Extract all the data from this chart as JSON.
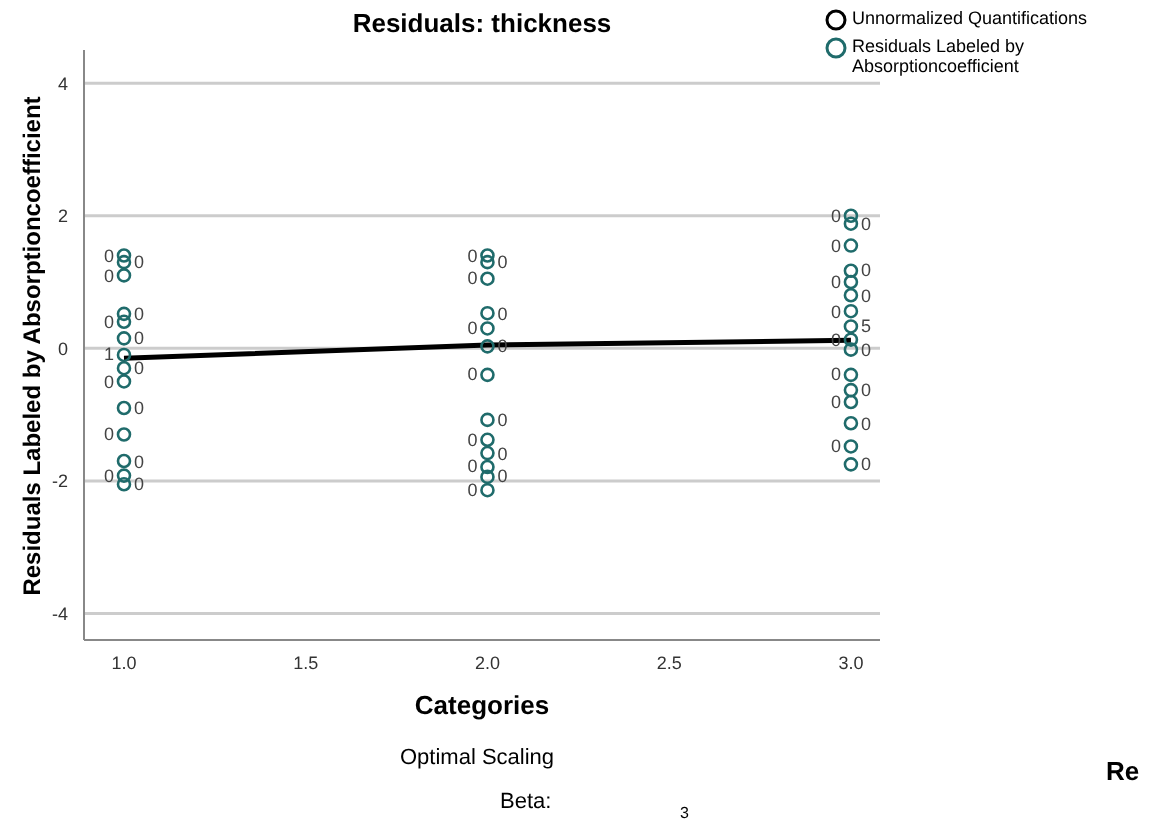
{
  "chart_data": {
    "type": "scatter",
    "title": "Residuals: thickness",
    "xlabel": "Categories",
    "ylabel": "Residuals Labeled by Absorptioncoefficient",
    "xlim": [
      0.89,
      3.08
    ],
    "xticks": [
      {
        "value": 1,
        "label": "1.0"
      },
      {
        "value": 1.5,
        "label": "1.5"
      },
      {
        "value": 2,
        "label": "2.0"
      },
      {
        "value": 2.5,
        "label": "2.5"
      },
      {
        "value": 3,
        "label": "3.0"
      }
    ],
    "ylim": [
      -4.4,
      4.5
    ],
    "yticks": [
      -4,
      -2,
      0,
      2,
      4
    ],
    "grid": "y",
    "legend": "top right",
    "series": [
      {
        "name": "Unnormalized Quantifications",
        "type": "line",
        "color": "#000000",
        "marker": "none",
        "x": [
          1,
          2,
          3
        ],
        "values": [
          -0.15,
          0.05,
          0.12
        ]
      },
      {
        "name": "Residuals Labeled by Absorptioncoefficient",
        "color": "#1f6b6b",
        "marker": "circle",
        "x": [
          1,
          1,
          1,
          1,
          1,
          1,
          1,
          1,
          1,
          1,
          1,
          1,
          1,
          1,
          2,
          2,
          2,
          2,
          2,
          2,
          2,
          2,
          2,
          2,
          2,
          2,
          2,
          3,
          3,
          3,
          3,
          3,
          3,
          3,
          3,
          3,
          3,
          3,
          3,
          3,
          3,
          3,
          3
        ],
        "values": [
          1.4,
          1.3,
          1.1,
          0.52,
          0.4,
          0.15,
          -0.1,
          -0.3,
          -0.5,
          -0.9,
          -1.3,
          -1.7,
          -1.92,
          -2.05,
          1.4,
          1.3,
          1.05,
          0.53,
          0.3,
          0.03,
          -0.4,
          -1.08,
          -1.38,
          -1.58,
          -1.79,
          -1.94,
          -2.14,
          2.0,
          1.88,
          1.55,
          1.17,
          1.0,
          0.8,
          0.56,
          0.33,
          0.13,
          -0.02,
          -0.4,
          -0.63,
          -0.81,
          -1.13,
          -1.48,
          -1.75
        ]
      }
    ],
    "annotations": [
      {
        "text": "0",
        "x": 1,
        "y": 1.4
      },
      {
        "text": "0",
        "x": 1,
        "y": 1.3
      },
      {
        "text": "0",
        "x": 1,
        "y": 1.1
      },
      {
        "text": "0",
        "x": 1,
        "y": 0.52
      },
      {
        "text": "0",
        "x": 1,
        "y": 0.4
      },
      {
        "text": "0",
        "x": 1,
        "y": 0.15
      },
      {
        "text": "1",
        "x": 1,
        "y": -0.1
      },
      {
        "text": "0",
        "x": 1,
        "y": -0.3
      },
      {
        "text": "0",
        "x": 1,
        "y": -0.5
      },
      {
        "text": "0",
        "x": 1,
        "y": -0.9
      },
      {
        "text": "0",
        "x": 1,
        "y": -1.3
      },
      {
        "text": "0",
        "x": 1,
        "y": -1.7
      },
      {
        "text": "0",
        "x": 1,
        "y": -1.92
      },
      {
        "text": "0",
        "x": 1,
        "y": -2.05
      },
      {
        "text": "0",
        "x": 2,
        "y": 1.4
      },
      {
        "text": "0",
        "x": 2,
        "y": 1.3
      },
      {
        "text": "0",
        "x": 2,
        "y": 1.05
      },
      {
        "text": "0",
        "x": 2,
        "y": 0.53
      },
      {
        "text": "0",
        "x": 2,
        "y": 0.3
      },
      {
        "text": "0",
        "x": 2,
        "y": 0.03
      },
      {
        "text": "0",
        "x": 2,
        "y": -0.4
      },
      {
        "text": "0",
        "x": 2,
        "y": -1.08
      },
      {
        "text": "0",
        "x": 2,
        "y": -1.38
      },
      {
        "text": "0",
        "x": 2,
        "y": -1.58
      },
      {
        "text": "0",
        "x": 2,
        "y": -1.79
      },
      {
        "text": "0",
        "x": 2,
        "y": -1.94
      },
      {
        "text": "0",
        "x": 2,
        "y": -2.14
      },
      {
        "text": "0",
        "x": 3,
        "y": 2.0
      },
      {
        "text": "0",
        "x": 3,
        "y": 1.88
      },
      {
        "text": "0",
        "x": 3,
        "y": 1.55
      },
      {
        "text": "0",
        "x": 3,
        "y": 1.17
      },
      {
        "text": "0",
        "x": 3,
        "y": 1.0
      },
      {
        "text": "0",
        "x": 3,
        "y": 0.8
      },
      {
        "text": "0",
        "x": 3,
        "y": 0.56
      },
      {
        "text": "5",
        "x": 3,
        "y": 0.33
      },
      {
        "text": "0",
        "x": 3,
        "y": 0.13
      },
      {
        "text": "0",
        "x": 3,
        "y": -0.02
      },
      {
        "text": "0",
        "x": 3,
        "y": -0.4
      },
      {
        "text": "0",
        "x": 3,
        "y": -0.63
      },
      {
        "text": "0",
        "x": 3,
        "y": -0.81
      },
      {
        "text": "0",
        "x": 3,
        "y": -1.13
      },
      {
        "text": "0",
        "x": 3,
        "y": -1.48
      },
      {
        "text": "0",
        "x": 3,
        "y": -1.75
      },
      "Optimal Scaling",
      "Beta:",
      "3",
      "Re"
    ]
  }
}
